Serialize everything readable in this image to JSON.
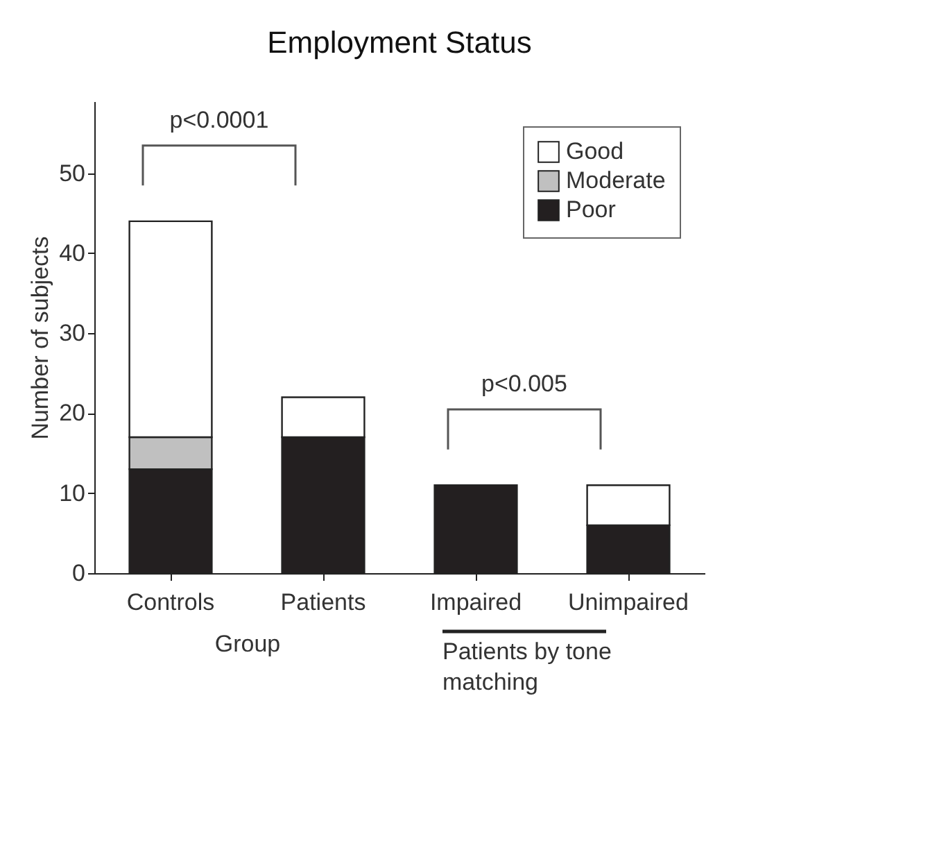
{
  "chart_data": {
    "type": "bar",
    "title": "Employment Status",
    "xlabel": "Group",
    "ylabel": "Number of subjects",
    "categories": [
      "Controls",
      "Patients",
      "Impaired",
      "Unimpaired"
    ],
    "series": [
      {
        "name": "Poor",
        "color": "#231f20",
        "values": [
          13,
          17,
          11,
          6
        ]
      },
      {
        "name": "Moderate",
        "color": "#c0c0c0",
        "values": [
          4,
          null,
          null,
          null
        ]
      },
      {
        "name": "Good",
        "color": "#ffffff",
        "values": [
          27,
          5,
          null,
          5
        ]
      }
    ],
    "stacked": true,
    "ylim": [
      0,
      59
    ],
    "yticks": [
      0,
      10,
      20,
      30,
      40,
      50
    ],
    "grid": false,
    "legend": "top right",
    "annotations": [
      "p<0.0001",
      "p<0.005",
      "Patients by tone matching"
    ]
  }
}
